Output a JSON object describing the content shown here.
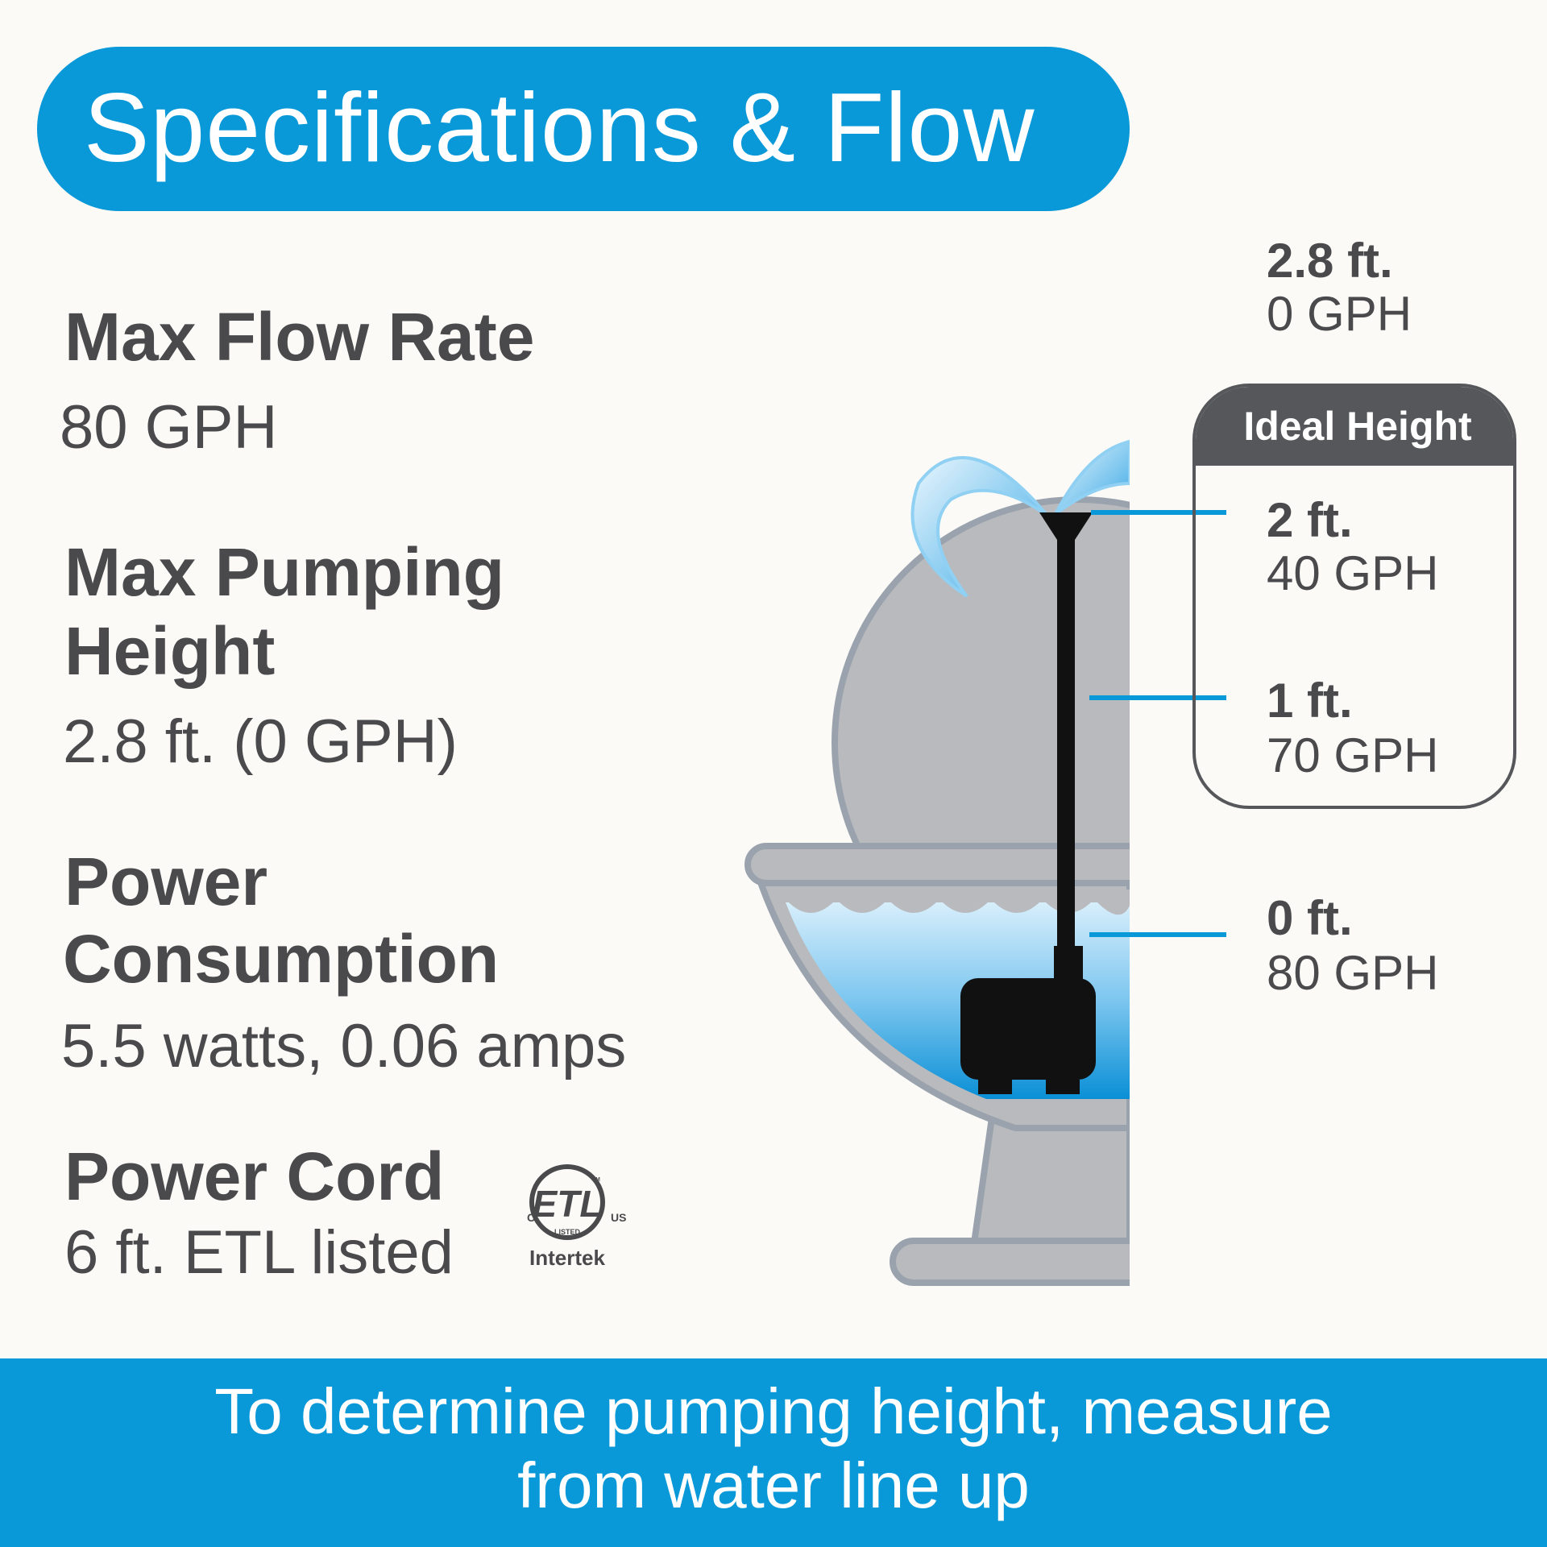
{
  "header": {
    "title": "Specifications & Flow"
  },
  "specs": [
    {
      "label": "Max Flow Rate",
      "value": "80 GPH"
    },
    {
      "label_line1": "Max Pumping",
      "label_line2": "Height",
      "value": "2.8 ft. (0 GPH)"
    },
    {
      "label_line1": "Power",
      "label_line2": "Consumption",
      "value": "5.5 watts, 0.06 amps"
    },
    {
      "label": "Power Cord",
      "value": "6 ft. ETL listed"
    }
  ],
  "certification": {
    "icon": "etl-listed-mark-icon",
    "mark": "ETL",
    "left": "C",
    "right": "US",
    "listed": "LISTED",
    "cm": "CM",
    "brand": "Intertek"
  },
  "flow_chart": {
    "max": {
      "height": "2.8 ft.",
      "flow": "0 GPH"
    },
    "ideal_title": "Ideal Height",
    "levels": [
      {
        "height": "2 ft.",
        "flow": "40 GPH"
      },
      {
        "height": "1 ft.",
        "flow": "70 GPH"
      },
      {
        "height": "0 ft.",
        "flow": "80 GPH"
      }
    ]
  },
  "footer": {
    "line1": "To determine pumping height, measure",
    "line2": "from water line up"
  },
  "colors": {
    "brand_blue": "#0998d8",
    "text_gray": "#4a4a4d",
    "fountain_gray": "#b9babd",
    "water_blue": "#4fb5e8"
  }
}
